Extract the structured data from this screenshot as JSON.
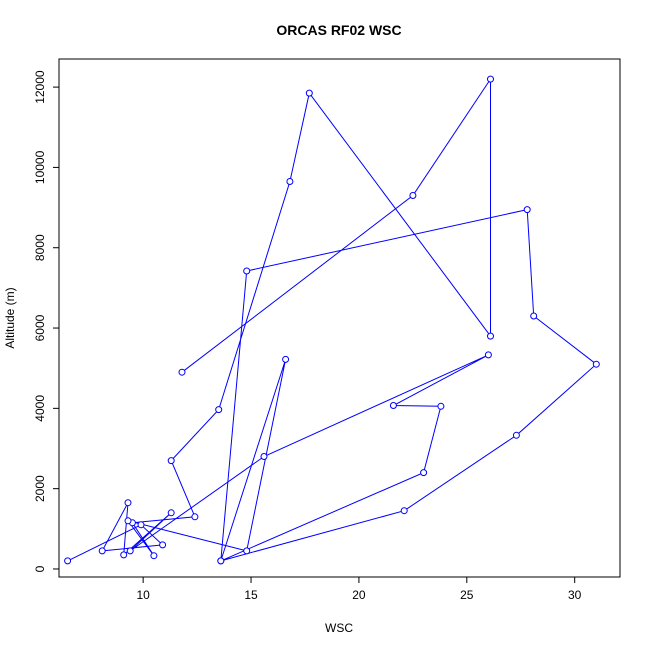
{
  "chart_data": {
    "type": "line",
    "title": "ORCAS RF02 WSC",
    "xlabel": "WSC",
    "ylabel": "Altitude (m)",
    "xlim": [
      6.1,
      32.1
    ],
    "ylim": [
      -200,
      12700
    ],
    "x_ticks": [
      10,
      15,
      20,
      25,
      30
    ],
    "y_ticks": [
      0,
      2000,
      4000,
      6000,
      8000,
      10000,
      12000
    ],
    "grid": false,
    "markers": "open-circle",
    "color": "#0000ff",
    "points": [
      {
        "x": 11.8,
        "y": 4900
      },
      {
        "x": 22.5,
        "y": 9300
      },
      {
        "x": 26.1,
        "y": 12200
      },
      {
        "x": 26.1,
        "y": 5800
      },
      {
        "x": 17.7,
        "y": 11850
      },
      {
        "x": 16.8,
        "y": 9650
      },
      {
        "x": 13.5,
        "y": 3970
      },
      {
        "x": 11.3,
        "y": 2700
      },
      {
        "x": 12.4,
        "y": 1300
      },
      {
        "x": 9.5,
        "y": 1150
      },
      {
        "x": 10.5,
        "y": 330
      },
      {
        "x": 9.3,
        "y": 1200
      },
      {
        "x": 14.8,
        "y": 450
      },
      {
        "x": 16.6,
        "y": 5220
      },
      {
        "x": 13.6,
        "y": 200
      },
      {
        "x": 22.1,
        "y": 1450
      },
      {
        "x": 27.3,
        "y": 3330
      },
      {
        "x": 31.0,
        "y": 5100
      },
      {
        "x": 28.1,
        "y": 6300
      },
      {
        "x": 27.8,
        "y": 8950
      },
      {
        "x": 14.8,
        "y": 7420
      },
      {
        "x": 13.6,
        "y": 200
      },
      {
        "x": 23.0,
        "y": 2400
      },
      {
        "x": 23.8,
        "y": 4050
      },
      {
        "x": 21.6,
        "y": 4070
      },
      {
        "x": 26.0,
        "y": 5330
      },
      {
        "x": 15.6,
        "y": 2800
      },
      {
        "x": 9.4,
        "y": 450
      },
      {
        "x": 11.3,
        "y": 1400
      },
      {
        "x": 9.1,
        "y": 350
      },
      {
        "x": 9.3,
        "y": 1650
      },
      {
        "x": 8.1,
        "y": 450
      },
      {
        "x": 10.9,
        "y": 600
      },
      {
        "x": 9.9,
        "y": 1100
      },
      {
        "x": 6.5,
        "y": 200
      }
    ]
  }
}
